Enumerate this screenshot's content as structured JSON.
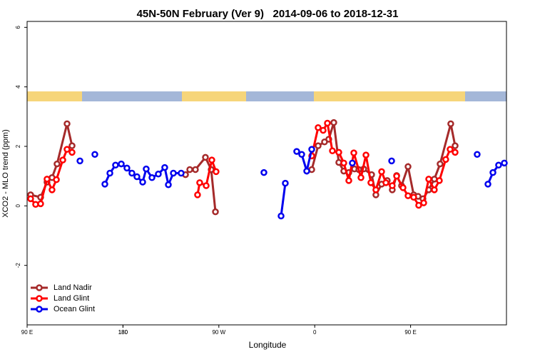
{
  "chart_data": {
    "type": "line",
    "title": "45N-50N February (Ver 9)   2014-09-06 to 2018-12-31",
    "x_label": "Longitude",
    "y_label": "XCO2 - MLO trend (ppm)",
    "xlim": [
      90,
      540
    ],
    "ylim": [
      -4,
      6.2
    ],
    "xticks": [
      {
        "value": 90,
        "label": "90 E"
      },
      180,
      {
        "value": 270,
        "label": "90 W"
      },
      {
        "value": 360,
        "label": "0"
      },
      {
        "value": 450,
        "label": "90 E"
      },
      180
    ],
    "yticks": [
      -2,
      0,
      2,
      4,
      6
    ],
    "legend": "bottomleft",
    "series": [
      {
        "name": "Land Nadir",
        "color": "#a52a2a",
        "x": [
          93.3,
          102.7,
          108.7,
          113.4,
          118.1,
          127.5,
          132.2,
          null,
          238.7,
          242.7,
          248.0,
          257.4,
          262.8,
          266.8,
          null,
          357.2,
          363.2,
          369.2,
          373.2,
          377.9,
          382.6,
          387.3,
          392.0,
          397.3,
          401.4,
          406.0,
          413.4,
          417.4,
          422.8,
          428.1,
          432.8,
          436.9,
          441.5,
          447.6,
          452.9,
          457.0,
          461.6,
          467.0,
          472.3,
          477.7,
          487.7,
          491.8
        ],
        "values": [
          0.37,
          0.29,
          0.8,
          0.95,
          1.41,
          2.76,
          2.02,
          null,
          1.05,
          1.22,
          1.22,
          1.63,
          1.22,
          -0.2,
          null,
          1.22,
          2.02,
          2.15,
          2.24,
          2.8,
          1.46,
          1.17,
          1.12,
          1.24,
          1.22,
          1.24,
          1.05,
          0.37,
          0.73,
          0.85,
          0.54,
          1.02,
          0.68,
          1.32,
          0.37,
          0.32,
          0.24,
          0.54,
          0.9,
          1.41,
          2.76,
          2.02
        ]
      },
      {
        "name": "Land Glint",
        "color": "#ff0000",
        "x": [
          93.3,
          98.0,
          102.7,
          108.7,
          113.4,
          117.5,
          123.5,
          127.5,
          132.2,
          null,
          250.0,
          252.0,
          258.1,
          263.4,
          267.4,
          null,
          357.2,
          363.2,
          367.9,
          371.9,
          376.6,
          382.6,
          387.3,
          392.0,
          396.7,
          403.4,
          408.1,
          412.7,
          417.4,
          422.8,
          426.8,
          432.8,
          436.9,
          442.9,
          447.6,
          452.9,
          457.6,
          462.3,
          467.0,
          472.3,
          477.0,
          483.0,
          487.1,
          491.8
        ],
        "values": [
          0.24,
          0.05,
          0.07,
          0.9,
          0.54,
          0.88,
          1.54,
          1.9,
          1.8,
          null,
          0.37,
          0.78,
          0.68,
          1.54,
          1.15,
          null,
          1.68,
          2.63,
          2.54,
          2.78,
          1.85,
          1.8,
          1.44,
          0.85,
          1.78,
          0.95,
          1.71,
          0.78,
          0.54,
          1.15,
          0.78,
          0.68,
          1.0,
          0.61,
          0.34,
          0.29,
          0.02,
          0.1,
          0.9,
          0.54,
          0.85,
          1.56,
          1.9,
          1.8
        ]
      },
      {
        "name": "Ocean Glint",
        "color": "#0000ee",
        "x": [
          139.6,
          null,
          153.6,
          null,
          163.0,
          167.7,
          173.0,
          178.4,
          183.7,
          188.4,
          193.1,
          198.5,
          201.8,
          207.2,
          213.2,
          219.2,
          222.6,
          227.3,
          234.6,
          null,
          312.3,
          null,
          328.4,
          332.4,
          null,
          343.1,
          347.8,
          352.5,
          357.2,
          null,
          395.3,
          null,
          432.2,
          null,
          512.5,
          null,
          522.6,
          527.3,
          532.6,
          538.0
        ],
        "values": [
          1.51,
          null,
          1.73,
          null,
          0.73,
          1.1,
          1.37,
          1.41,
          1.27,
          1.1,
          0.98,
          0.8,
          1.24,
          0.95,
          1.07,
          1.29,
          0.71,
          1.1,
          1.1,
          null,
          1.12,
          null,
          -0.34,
          0.76,
          null,
          1.83,
          1.73,
          1.17,
          1.9,
          null,
          1.44,
          null,
          1.51,
          null,
          1.73,
          null,
          0.73,
          1.12,
          1.37,
          1.44
        ]
      }
    ]
  }
}
